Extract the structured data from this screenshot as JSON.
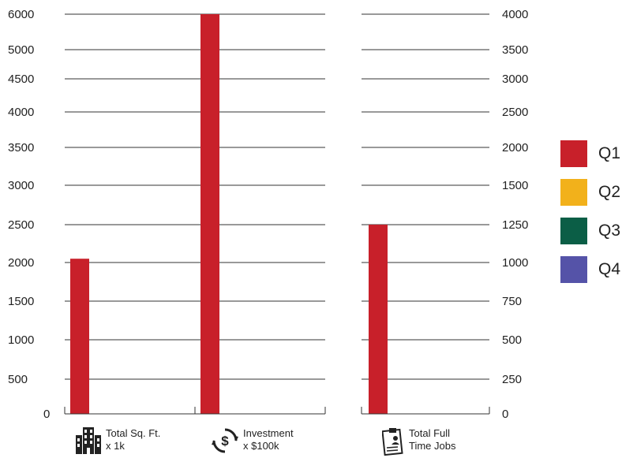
{
  "chart_data": {
    "type": "bar",
    "categories": [
      {
        "line1": "Total Sq. Ft.",
        "line2": "x 1k",
        "icon": "building-icon"
      },
      {
        "line1": "Investment",
        "line2": "x $100k",
        "icon": "dollar-cycle-icon"
      },
      {
        "line1": "Total Full",
        "line2": "Time Jobs",
        "icon": "clipboard-person-icon"
      }
    ],
    "left_axis": {
      "ticks": [
        "0",
        "500",
        "1000",
        "1500",
        "2000",
        "2500",
        "3000",
        "3500",
        "4000",
        "4500",
        "5000",
        "6000"
      ],
      "tick_values": [
        0,
        500,
        1000,
        1500,
        2000,
        2500,
        3000,
        3500,
        4000,
        4500,
        5000,
        6000
      ]
    },
    "right_axis": {
      "ticks": [
        "0",
        "250",
        "500",
        "750",
        "1000",
        "1250",
        "1500",
        "2000",
        "2500",
        "3000",
        "3500",
        "4000"
      ],
      "tick_values": [
        0,
        250,
        500,
        750,
        1000,
        1250,
        1500,
        2000,
        2500,
        3000,
        3500,
        4000
      ]
    },
    "series": [
      {
        "name": "Q1",
        "color": "#c8202a",
        "values": [
          2050,
          6000,
          1250
        ],
        "axis": [
          "left",
          "left",
          "right"
        ]
      },
      {
        "name": "Q2",
        "color": "#f2b11b",
        "values": [
          0,
          0,
          0
        ]
      },
      {
        "name": "Q3",
        "color": "#0b5e46",
        "values": [
          0,
          0,
          0
        ]
      },
      {
        "name": "Q4",
        "color": "#5553a8",
        "values": [
          0,
          0,
          0
        ]
      }
    ],
    "legend_position": "right",
    "grid": true
  }
}
